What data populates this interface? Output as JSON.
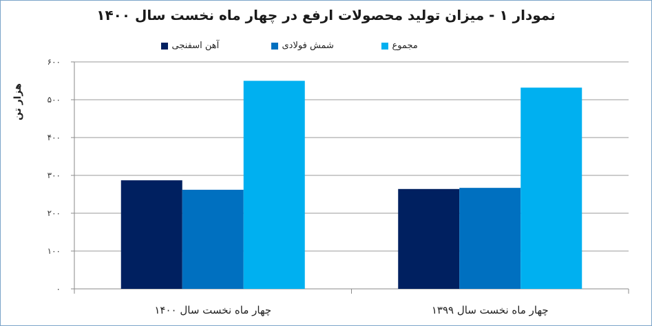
{
  "chart_data": {
    "type": "bar",
    "title": "نمودار ۱ - میزان تولید محصولات ارفع در چهار ماه نخست سال ۱۴۰۰",
    "ylabel": "هزار تن",
    "xlabel": "",
    "ylim": [
      0,
      600
    ],
    "yticks": [
      0,
      100,
      200,
      300,
      400,
      500,
      600
    ],
    "ytick_labels": [
      "۰",
      "۱۰۰",
      "۲۰۰",
      "۳۰۰",
      "۴۰۰",
      "۵۰۰",
      "۶۰۰"
    ],
    "categories": [
      "چهار ماه نخست سال ۱۴۰۰",
      "چهار ماه نخست سال ۱۳۹۹"
    ],
    "series": [
      {
        "name": "آهن اسفنجی",
        "color": "#002060",
        "values": [
          287,
          264
        ]
      },
      {
        "name": "شمش فولادی",
        "color": "#0070c0",
        "values": [
          262,
          267
        ]
      },
      {
        "name": "مجموع",
        "color": "#00b0f0",
        "values": [
          550,
          532
        ]
      }
    ],
    "legend_position": "top",
    "grid": true
  }
}
